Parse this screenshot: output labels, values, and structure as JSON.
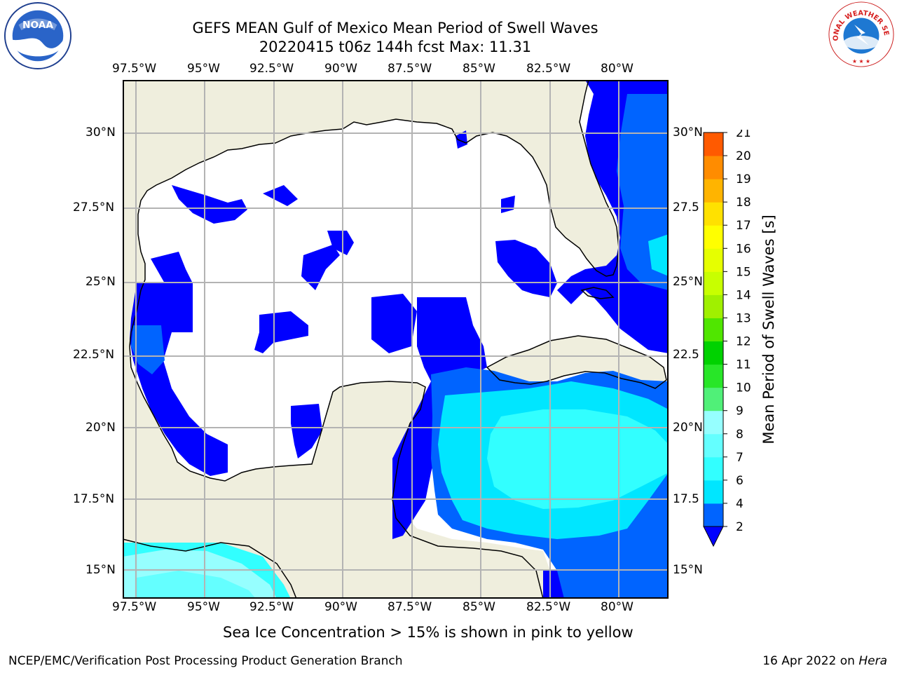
{
  "title": {
    "line1": "GEFS MEAN Gulf of Mexico Mean Period of Swell Waves",
    "line2": "20220415 t06z 144h fcst   Max: 11.31"
  },
  "map": {
    "lon_labels": [
      "97.5°W",
      "95°W",
      "92.5°W",
      "90°W",
      "87.5°W",
      "85°W",
      "82.5°W",
      "80°W"
    ],
    "lon_values": [
      -97.5,
      -95,
      -92.5,
      -90,
      -87.5,
      -85,
      -82.5,
      -80
    ],
    "lat_labels_left": [
      "30°N",
      "27.5°N",
      "25°N",
      "22.5°N",
      "20°N",
      "17.5°N",
      "15°N"
    ],
    "lat_labels_right": [
      "30°N",
      "27.5",
      "25°N",
      "22.5",
      "20°N",
      "17.5",
      "15°N"
    ],
    "lat_values": [
      30,
      27.5,
      25,
      22.5,
      20,
      17.5,
      15
    ],
    "extent": {
      "lon": [
        -98,
        -78.2
      ],
      "lat": [
        14,
        31.7
      ]
    },
    "colors": {
      "land": "#efeedd",
      "ocean": "#ffffff",
      "grid": "#b3b3b3",
      "coast": "#000000"
    }
  },
  "colorbar": {
    "label": "Mean Period of Swell Waves [s]",
    "ticks": [
      "2",
      "4",
      "6",
      "7",
      "8",
      "9",
      "10",
      "11",
      "12",
      "13",
      "14",
      "15",
      "16",
      "17",
      "18",
      "19",
      "20",
      "21"
    ],
    "colors": [
      "#0064ff",
      "#00e6ff",
      "#32ffff",
      "#64ffff",
      "#96ffff",
      "#50f078",
      "#28e628",
      "#00d200",
      "#50e600",
      "#a0f000",
      "#c8ff00",
      "#e6ff00",
      "#ffff00",
      "#ffe100",
      "#ffb400",
      "#ff8c00",
      "#ff5a00",
      "#ff2800",
      "#ff0000"
    ],
    "under_color": "#0000ff"
  },
  "subtitle": "Sea Ice Concentration > 15% is shown in pink to yellow",
  "footer": {
    "left": "NCEP/EMC/Verification Post Processing Product Generation Branch",
    "right_date": "16 Apr 2022 on ",
    "right_host": "Hera"
  },
  "logos": {
    "left": "NOAA",
    "right_text": "NATIONAL WEATHER SERVICE"
  }
}
